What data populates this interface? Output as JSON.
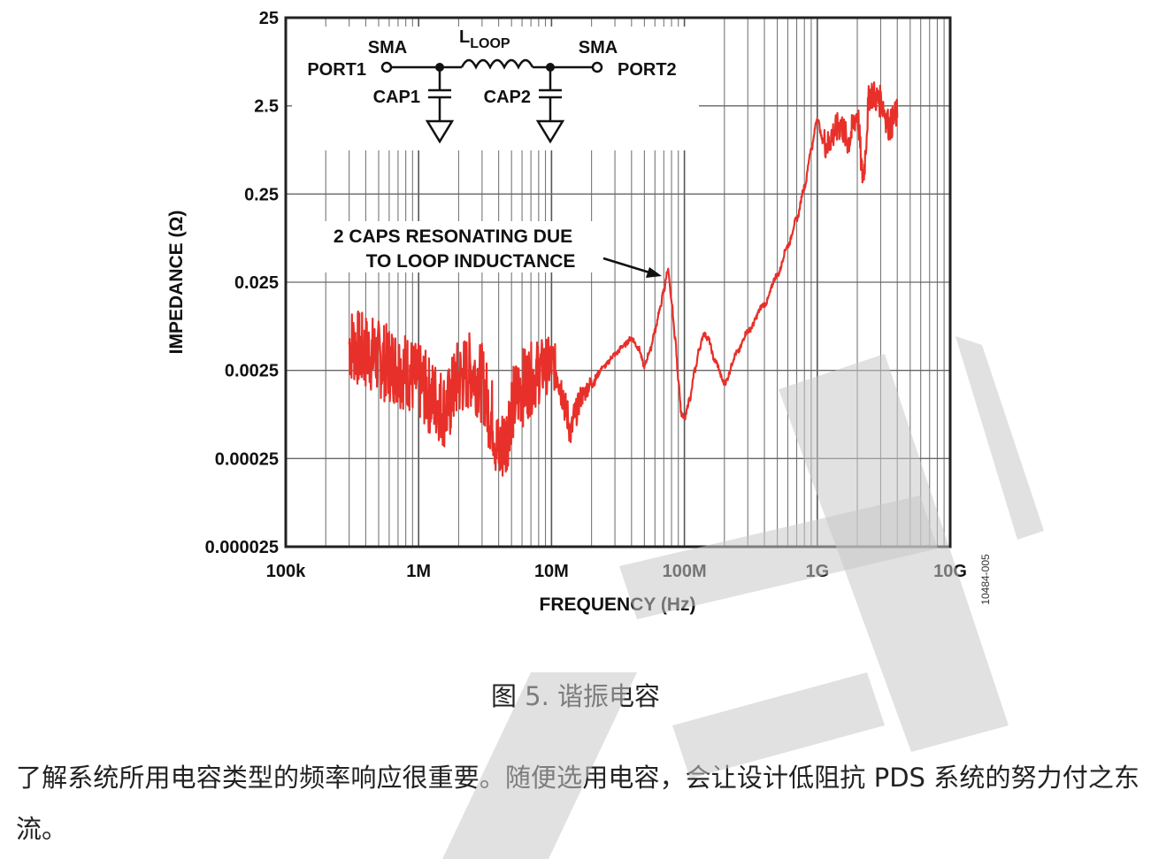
{
  "chart_data": {
    "type": "line",
    "xlabel": "FREQUENCY (Hz)",
    "ylabel": "IMPEDANCE (Ω)",
    "xscale": "log",
    "yscale": "log",
    "xlim": [
      100000,
      10000000000
    ],
    "ylim": [
      2.5e-05,
      25
    ],
    "x_ticks": [
      {
        "value": 100000,
        "label": "100k"
      },
      {
        "value": 1000000,
        "label": "1M"
      },
      {
        "value": 10000000,
        "label": "10M"
      },
      {
        "value": 100000000,
        "label": "100M"
      },
      {
        "value": 1000000000,
        "label": "1G"
      },
      {
        "value": 10000000000,
        "label": "10G"
      }
    ],
    "y_ticks": [
      {
        "value": 25,
        "label": "25"
      },
      {
        "value": 2.5,
        "label": "2.5"
      },
      {
        "value": 0.25,
        "label": "0.25"
      },
      {
        "value": 0.025,
        "label": "0.025"
      },
      {
        "value": 0.0025,
        "label": "0.0025"
      },
      {
        "value": 0.00025,
        "label": "0.00025"
      },
      {
        "value": 2.5e-05,
        "label": "0.000025"
      }
    ],
    "grid": true,
    "series_color": "#e8302a",
    "series": [
      {
        "x": [
          300000,
          400000,
          600000,
          800000,
          1000000,
          1300000,
          1600000,
          2000000,
          2500000,
          3000000,
          3500000,
          4000000,
          4500000,
          5000000,
          6000000,
          7000000,
          8000000,
          9000000,
          10000000,
          11000000,
          12000000,
          13000000,
          14000000,
          15000000,
          17000000,
          20000000,
          25000000,
          30000000,
          35000000,
          40000000,
          45000000,
          50000000,
          55000000,
          60000000,
          65000000,
          70000000,
          75000000,
          80000000,
          85000000,
          90000000,
          95000000,
          100000000,
          110000000,
          120000000,
          130000000,
          140000000,
          150000000,
          170000000,
          200000000,
          250000000,
          300000000,
          400000000,
          500000000,
          600000000,
          700000000,
          800000000,
          900000000,
          1000000000,
          1100000000,
          1200000000,
          1300000000,
          1500000000,
          1700000000,
          2000000000,
          2200000000,
          2500000000,
          3000000000,
          3500000000,
          4000000000
        ],
        "y": [
          0.005,
          0.004,
          0.003,
          0.0025,
          0.0018,
          0.0012,
          0.0009,
          0.002,
          0.0025,
          0.0018,
          0.0008,
          0.0003,
          0.0004,
          0.001,
          0.0016,
          0.002,
          0.0024,
          0.0028,
          0.003,
          0.0025,
          0.0015,
          0.0008,
          0.0005,
          0.0008,
          0.0013,
          0.0018,
          0.0028,
          0.0038,
          0.0048,
          0.0058,
          0.0045,
          0.0028,
          0.0042,
          0.007,
          0.012,
          0.02,
          0.035,
          0.015,
          0.006,
          0.002,
          0.0008,
          0.0007,
          0.0012,
          0.0025,
          0.0045,
          0.0065,
          0.0058,
          0.0032,
          0.0018,
          0.004,
          0.007,
          0.014,
          0.03,
          0.065,
          0.13,
          0.3,
          0.8,
          1.8,
          1.0,
          0.9,
          1.2,
          1.5,
          1.0,
          2.0,
          0.4,
          3.5,
          2.8,
          1.5,
          2.0
        ]
      }
    ],
    "annotation": {
      "line1": "2 CAPS RESONATING DUE",
      "line2": "TO LOOP INDUCTANCE",
      "x": 75000000,
      "y": 0.028
    }
  },
  "schematic": {
    "sma_left": "SMA",
    "sma_right": "SMA",
    "port1": "PORT1",
    "port2": "PORT2",
    "l_main": "L",
    "l_sub": "LOOP",
    "cap1": "CAP1",
    "cap2": "CAP2"
  },
  "figure_id": "10484-005",
  "caption": "图 5. 谐振电容",
  "paragraph": "了解系统所用电容类型的频率响应很重要。随便选用电容，会让设计低阻抗 PDS 系统的努力付之东流。"
}
